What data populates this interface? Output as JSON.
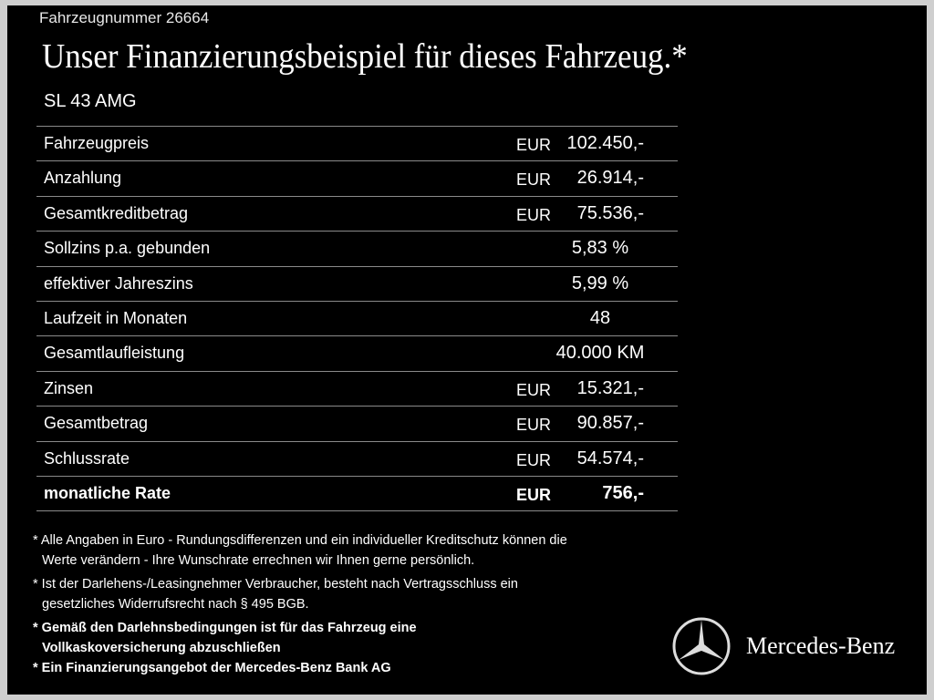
{
  "header": {
    "vehicle_number": "Fahrzeugnummer  26664",
    "title": "Unser Finanzierungsbeispiel für dieses Fahrzeug.*",
    "model": "SL 43 AMG"
  },
  "table": {
    "rows": [
      {
        "label": "Fahrzeugpreis",
        "unit": "EUR",
        "amount": "102.450,-"
      },
      {
        "label": "Anzahlung",
        "unit": "EUR",
        "amount": "26.914,-"
      },
      {
        "label": "Gesamtkreditbetrag",
        "unit": "EUR",
        "amount": "75.536,-"
      },
      {
        "label": "Sollzins p.a. gebunden",
        "amount": "5,83 %"
      },
      {
        "label": "effektiver Jahreszins",
        "amount": "5,99 %"
      },
      {
        "label": "Laufzeit in Monaten",
        "amount": "48"
      },
      {
        "label": "Gesamtlaufleistung",
        "amount": "40.000 KM"
      },
      {
        "label": "Zinsen",
        "unit": "EUR",
        "amount": "15.321,-"
      },
      {
        "label": "Gesamtbetrag",
        "unit": "EUR",
        "amount": "90.857,-"
      },
      {
        "label": "Schlussrate",
        "unit": "EUR",
        "amount": "54.574,-"
      },
      {
        "label": "monatliche Rate",
        "unit": "EUR",
        "amount": "756,-"
      }
    ]
  },
  "footnotes": [
    {
      "lines": [
        "* Alle Angaben in Euro - Rundungsdifferenzen und ein individueller Kreditschutz können die",
        "Werte verändern - Ihre Wunschrate errechnen wir Ihnen gerne persönlich."
      ]
    },
    {
      "lines": [
        "* Ist der Darlehens-/Leasingnehmer Verbraucher, besteht nach Vertragsschluss ein",
        "gesetzliches Widerrufsrecht nach § 495 BGB."
      ]
    },
    {
      "lines": [
        "* Gemäß den Darlehnsbedingungen ist für das Fahrzeug eine",
        "Vollkaskoversicherung abzuschließen"
      ]
    },
    {
      "lines": [
        "* Ein Finanzierungsangebot der Mercedes-Benz Bank AG"
      ]
    }
  ],
  "logo": {
    "brand": "Mercedes-Benz"
  }
}
